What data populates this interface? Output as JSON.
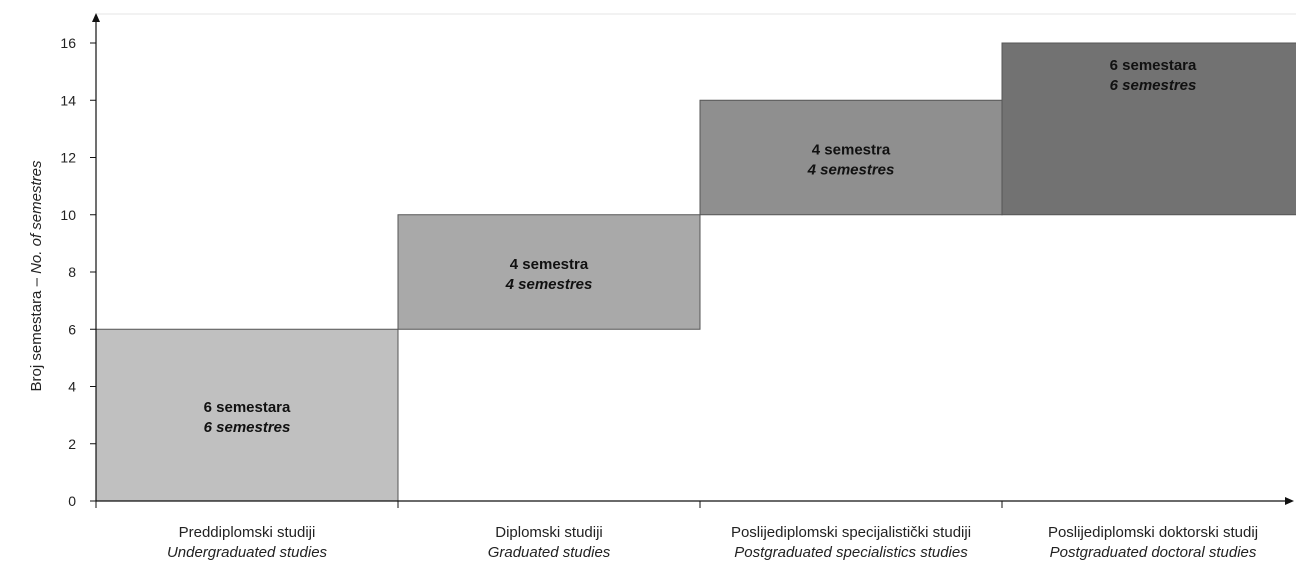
{
  "chart_data": {
    "type": "bar",
    "subtype": "floating-stacked-steps",
    "ylabel_main": "Broj semestara",
    "ylabel_separator": " – ",
    "ylabel_en": "No. of semestres",
    "ylim": [
      0,
      16
    ],
    "yticks": [
      "0",
      "2",
      "4",
      "6",
      "8",
      "10",
      "12",
      "14",
      "16"
    ],
    "grid": false,
    "legend": "none",
    "categories": [
      {
        "label_hr": "Preddiplomski studiji",
        "label_en": "Undergraduated studies"
      },
      {
        "label_hr": "Diplomski studiji",
        "label_en": "Graduated studies"
      },
      {
        "label_hr": "Poslijediplomski specijalistički studiji",
        "label_en": "Postgraduated specialistics studies"
      },
      {
        "label_hr": "Poslijediplomski doktorski studij",
        "label_en": "Postgraduated doctoral studies"
      }
    ],
    "bars": [
      {
        "start": 0,
        "end": 6,
        "value": 6,
        "label_hr": "6 semestara",
        "label_en": "6 semestres",
        "color": "#c0c0c0"
      },
      {
        "start": 6,
        "end": 10,
        "value": 4,
        "label_hr": "4 semestra",
        "label_en": "4 semestres",
        "color": "#a9a9a9"
      },
      {
        "start": 10,
        "end": 14,
        "value": 4,
        "label_hr": "4 semestra",
        "label_en": "4 semestres",
        "color": "#8f8f8f"
      },
      {
        "start": 10,
        "end": 16,
        "value": 6,
        "label_hr": "6 semestara",
        "label_en": "6 semestres",
        "color": "#727272"
      }
    ]
  }
}
